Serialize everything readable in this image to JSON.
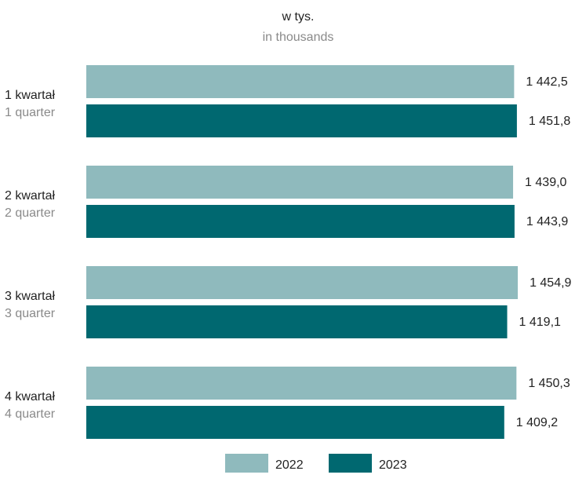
{
  "chart_data": {
    "type": "bar",
    "orientation": "horizontal",
    "unit_label": "w tys.",
    "unit_label_en": "in thousands",
    "categories": [
      "1 kwartał",
      "2 kwartał",
      "3 kwartał",
      "4 kwartał"
    ],
    "categories_en": [
      "1 quarter",
      "2 quarter",
      "3 quarter",
      "4 quarter"
    ],
    "series": [
      {
        "name": "2022",
        "color": "#8fbabd",
        "values": [
          1442.5,
          1439.0,
          1454.9,
          1450.3
        ],
        "labels": [
          "1 442,5",
          "1 439,0",
          "1 454,9",
          "1 450,3"
        ]
      },
      {
        "name": "2023",
        "color": "#006870",
        "values": [
          1451.8,
          1443.9,
          1419.1,
          1409.2
        ],
        "labels": [
          "1 451,8",
          "1 443,9",
          "1 419,1",
          "1 409,2"
        ]
      }
    ],
    "xlim": [
      0,
      1460
    ],
    "grid": false,
    "legend_position": "bottom"
  }
}
